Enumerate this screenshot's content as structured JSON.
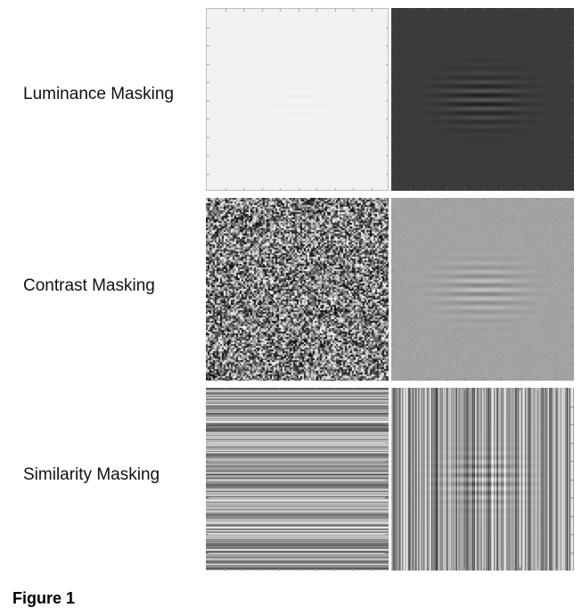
{
  "rows": [
    {
      "label": "Luminance Masking",
      "mask": "uniform-light",
      "masked": "uniform-dark-with-grating"
    },
    {
      "label": "Contrast Masking",
      "mask": "random-noise",
      "masked": "gray-with-grating"
    },
    {
      "label": "Similarity Masking",
      "mask": "horizontal-stripes",
      "masked": "vertical-stripes-with-grating"
    }
  ],
  "caption": "Figure 1",
  "colors": {
    "light_field": "#f2f2f2",
    "dark_field": "#3b3b3b",
    "gray_field": "#a3a3a3",
    "tick": "#9a9a9a"
  }
}
